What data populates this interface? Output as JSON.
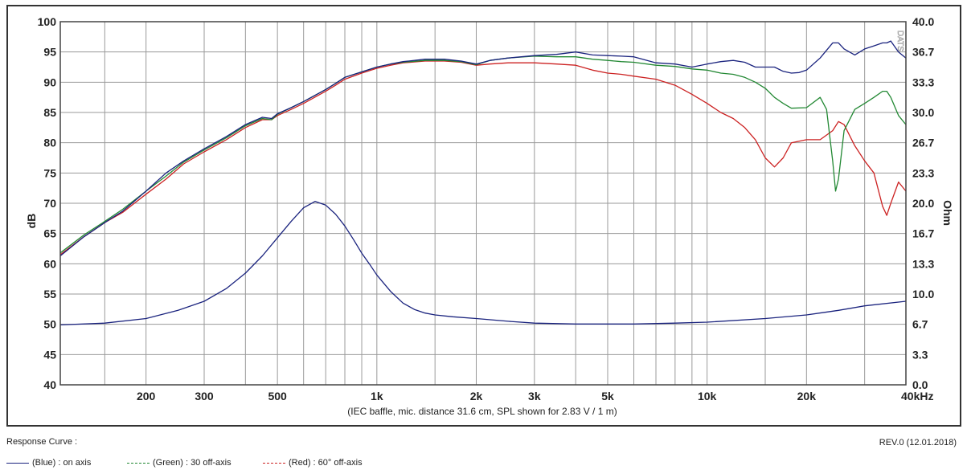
{
  "chart_data": {
    "type": "line",
    "caption": "(IEC baffle, mic. distance 31.6 cm, SPL shown for 2.83 V / 1 m)",
    "watermark": "DATS",
    "ylabel": "dB",
    "y2label": "Ohm",
    "x_scale": "log",
    "xlim": [
      110,
      40000
    ],
    "ylim": [
      40,
      100
    ],
    "y2lim": [
      0,
      40
    ],
    "grid": true,
    "x_ticks": [
      {
        "v": 200,
        "label": "200"
      },
      {
        "v": 300,
        "label": "300"
      },
      {
        "v": 500,
        "label": "500"
      },
      {
        "v": 1000,
        "label": "1k"
      },
      {
        "v": 2000,
        "label": "2k"
      },
      {
        "v": 3000,
        "label": "3k"
      },
      {
        "v": 5000,
        "label": "5k"
      },
      {
        "v": 10000,
        "label": "10k"
      },
      {
        "v": 20000,
        "label": "20k"
      },
      {
        "v": 40000,
        "label": "40kHz"
      }
    ],
    "x_grid": [
      150,
      200,
      300,
      400,
      500,
      600,
      700,
      800,
      900,
      1000,
      1500,
      2000,
      3000,
      4000,
      5000,
      6000,
      7000,
      8000,
      9000,
      10000,
      15000,
      20000,
      30000,
      40000
    ],
    "y_ticks": [
      "100",
      "95",
      "90",
      "85",
      "80",
      "75",
      "70",
      "65",
      "60",
      "55",
      "50",
      "45",
      "40"
    ],
    "y_tick_values": [
      100,
      95,
      90,
      85,
      80,
      75,
      70,
      65,
      60,
      55,
      50,
      45,
      40
    ],
    "y2_ticks": [
      "40.0",
      "36.7",
      "33.3",
      "30.0",
      "26.7",
      "23.3",
      "20.0",
      "16.7",
      "13.3",
      "10.0",
      "6.7",
      "3.3",
      "0.0"
    ],
    "series": [
      {
        "name": "(Red) : 60° off-axis",
        "color": "#cc2222",
        "axis": "dB",
        "x": [
          110,
          130,
          150,
          170,
          200,
          230,
          260,
          300,
          350,
          400,
          450,
          480,
          500,
          550,
          600,
          700,
          750,
          800,
          900,
          1000,
          1100,
          1200,
          1400,
          1600,
          1800,
          2000,
          2200,
          2500,
          3000,
          3500,
          4000,
          4500,
          5000,
          5500,
          6000,
          7000,
          8000,
          9000,
          10000,
          11000,
          12000,
          13000,
          14000,
          15000,
          16000,
          17000,
          18000,
          20000,
          22000,
          24000,
          25000,
          26000,
          28000,
          30000,
          32000,
          34000,
          35000,
          36000,
          38000,
          40000
        ],
        "y": [
          61.5,
          64.5,
          66.8,
          68.5,
          71.5,
          74,
          76.5,
          78.5,
          80.5,
          82.5,
          83.8,
          83.8,
          84.5,
          85.5,
          86.5,
          88.5,
          89.5,
          90.5,
          91.5,
          92.3,
          92.8,
          93.2,
          93.5,
          93.5,
          93.3,
          92.8,
          93,
          93.2,
          93.2,
          93,
          92.8,
          92,
          91.5,
          91.3,
          91,
          90.5,
          89.5,
          88,
          86.5,
          85,
          84,
          82.5,
          80.5,
          77.5,
          76,
          77.5,
          80,
          80.5,
          80.5,
          82,
          83.5,
          83,
          79.5,
          77,
          75,
          69.5,
          68,
          70,
          73.5,
          72
        ]
      },
      {
        "name": "(Green) : 30 off-axis",
        "color": "#228833",
        "axis": "dB",
        "x": [
          110,
          130,
          150,
          170,
          200,
          230,
          260,
          300,
          350,
          400,
          450,
          480,
          500,
          550,
          600,
          700,
          750,
          800,
          900,
          1000,
          1100,
          1200,
          1400,
          1600,
          1800,
          2000,
          2200,
          2500,
          3000,
          3500,
          4000,
          4500,
          5000,
          5500,
          6000,
          7000,
          8000,
          9000,
          10000,
          11000,
          12000,
          13000,
          14000,
          15000,
          16000,
          17000,
          18000,
          20000,
          22000,
          23000,
          24000,
          24500,
          25000,
          26000,
          28000,
          30000,
          32000,
          34000,
          35000,
          36000,
          38000,
          40000
        ],
        "y": [
          61.8,
          64.8,
          67,
          69,
          72,
          74.5,
          76.8,
          78.8,
          80.8,
          82.8,
          84,
          83.8,
          84.7,
          85.8,
          86.8,
          88.8,
          89.8,
          90.8,
          91.7,
          92.5,
          93,
          93.3,
          93.6,
          93.6,
          93.4,
          92.9,
          93.6,
          94,
          94.3,
          94.2,
          94.2,
          93.8,
          93.6,
          93.4,
          93.3,
          92.8,
          92.6,
          92.2,
          92,
          91.5,
          91.3,
          90.8,
          90,
          89,
          87.5,
          86.5,
          85.7,
          85.8,
          87.5,
          85.5,
          77,
          72,
          74,
          82,
          85.5,
          86.5,
          87.5,
          88.5,
          88.5,
          87.5,
          84.5,
          83
        ]
      },
      {
        "name": "(Blue) : on axis",
        "color": "#1a237e",
        "axis": "dB",
        "x": [
          110,
          130,
          150,
          170,
          200,
          230,
          260,
          300,
          350,
          400,
          450,
          480,
          500,
          550,
          600,
          700,
          750,
          800,
          900,
          1000,
          1100,
          1200,
          1400,
          1600,
          1800,
          2000,
          2200,
          2500,
          3000,
          3500,
          4000,
          4500,
          5000,
          5500,
          6000,
          7000,
          8000,
          9000,
          10000,
          11000,
          12000,
          13000,
          14000,
          15000,
          16000,
          17000,
          18000,
          19000,
          20000,
          22000,
          24000,
          25000,
          26000,
          28000,
          30000,
          32000,
          34000,
          35000,
          36000,
          38000,
          40000
        ],
        "y": [
          61.3,
          64.5,
          66.8,
          68.7,
          72,
          75,
          77,
          79,
          81,
          83,
          84.2,
          84,
          84.8,
          85.8,
          86.8,
          88.8,
          89.8,
          90.8,
          91.7,
          92.5,
          93,
          93.4,
          93.8,
          93.8,
          93.5,
          93,
          93.6,
          94,
          94.4,
          94.6,
          95,
          94.5,
          94.4,
          94.3,
          94.2,
          93.2,
          93,
          92.5,
          93,
          93.4,
          93.6,
          93.3,
          92.5,
          92.5,
          92.5,
          91.8,
          91.5,
          91.6,
          92,
          94,
          96.5,
          96.5,
          95.5,
          94.5,
          95.5,
          96,
          96.5,
          96.5,
          96.8,
          95,
          94
        ]
      },
      {
        "name": "Impedance",
        "color": "#1a237e",
        "axis": "Ohm",
        "x": [
          110,
          150,
          200,
          250,
          300,
          350,
          400,
          450,
          500,
          550,
          600,
          650,
          700,
          750,
          800,
          850,
          900,
          950,
          1000,
          1100,
          1200,
          1300,
          1400,
          1500,
          1700,
          2000,
          2500,
          3000,
          4000,
          5000,
          6000,
          8000,
          10000,
          15000,
          20000,
          25000,
          30000,
          40000
        ],
        "y": [
          6.6,
          6.8,
          7.3,
          8.2,
          9.2,
          10.6,
          12.3,
          14.2,
          16.2,
          18,
          19.5,
          20.2,
          19.8,
          18.8,
          17.5,
          16,
          14.5,
          13.3,
          12.1,
          10.3,
          9,
          8.3,
          7.9,
          7.7,
          7.5,
          7.3,
          7.0,
          6.8,
          6.7,
          6.7,
          6.7,
          6.8,
          6.9,
          7.3,
          7.7,
          8.2,
          8.7,
          9.2
        ]
      }
    ]
  },
  "footer": {
    "section_label": "Response Curve :",
    "revision": "REV.0 (12.01.2018)",
    "legend": [
      {
        "label": "(Blue)  : on axis",
        "color": "#1a237e"
      },
      {
        "label": "(Green) : 30 off-axis",
        "color": "#228833"
      },
      {
        "label": "(Red) : 60° off-axis",
        "color": "#cc2222"
      }
    ]
  }
}
